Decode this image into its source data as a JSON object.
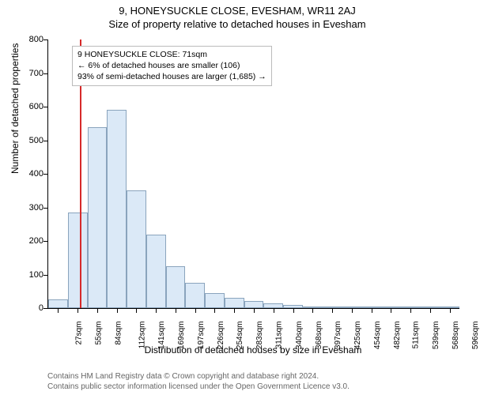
{
  "header": {
    "main_title": "9, HONEYSUCKLE CLOSE, EVESHAM, WR11 2AJ",
    "sub_title": "Size of property relative to detached houses in Evesham"
  },
  "chart": {
    "type": "histogram",
    "ylabel": "Number of detached properties",
    "xlabel": "Distribution of detached houses by size in Evesham",
    "ylim": [
      0,
      800
    ],
    "ytick_step": 100,
    "x_ticks": [
      "27sqm",
      "55sqm",
      "84sqm",
      "112sqm",
      "141sqm",
      "169sqm",
      "197sqm",
      "226sqm",
      "254sqm",
      "283sqm",
      "311sqm",
      "340sqm",
      "368sqm",
      "397sqm",
      "425sqm",
      "454sqm",
      "482sqm",
      "511sqm",
      "539sqm",
      "568sqm",
      "596sqm"
    ],
    "bar_fill": "#dbe9f7",
    "bar_border": "#8aa4bd",
    "background": "#ffffff",
    "marker": {
      "index": 1.6,
      "color": "#d62a2a"
    },
    "bars": [
      25,
      285,
      540,
      590,
      350,
      220,
      125,
      75,
      45,
      30,
      22,
      15,
      10,
      5,
      3,
      2,
      2,
      1,
      1,
      1,
      1
    ]
  },
  "info_box": {
    "line1": "9 HONEYSUCKLE CLOSE: 71sqm",
    "line2": "← 6% of detached houses are smaller (106)",
    "line3": "93% of semi-detached houses are larger (1,685) →"
  },
  "footer": {
    "line1": "Contains HM Land Registry data © Crown copyright and database right 2024.",
    "line2": "Contains public sector information licensed under the Open Government Licence v3.0."
  }
}
